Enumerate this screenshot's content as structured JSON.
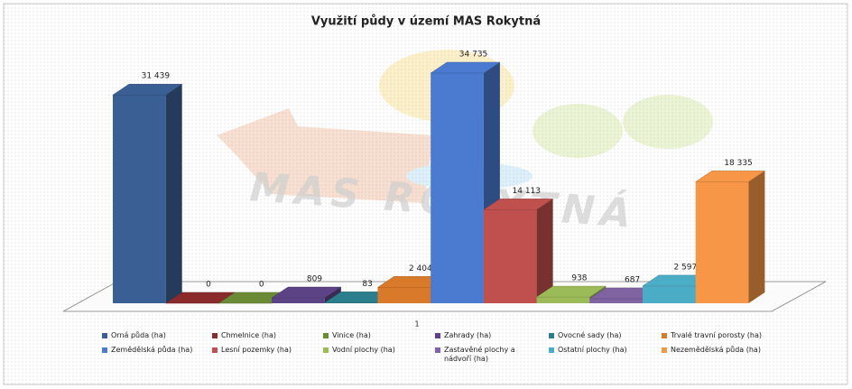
{
  "chart_data": {
    "type": "bar3d",
    "title": "Využití půdy v území MAS Rokytná",
    "watermark": "MAS ROKYTNÁ",
    "categories": [
      "1"
    ],
    "series": [
      {
        "name": "Orná půda (ha)",
        "color": "#3a5f95",
        "values": [
          31439
        ],
        "value_labels": [
          "31 439"
        ]
      },
      {
        "name": "Chmelnice (ha)",
        "color": "#8b2a2a",
        "values": [
          0
        ],
        "value_labels": [
          "0"
        ]
      },
      {
        "name": "Vinice (ha)",
        "color": "#6b8a35",
        "values": [
          0
        ],
        "value_labels": [
          "0"
        ]
      },
      {
        "name": "Zahrady (ha)",
        "color": "#5c4385",
        "values": [
          809
        ],
        "value_labels": [
          "809"
        ]
      },
      {
        "name": "Ovocné sady (ha)",
        "color": "#2b7f8d",
        "values": [
          83
        ],
        "value_labels": [
          "83"
        ]
      },
      {
        "name": "Trvalé travní porosty (ha)",
        "color": "#d97a2b",
        "values": [
          2404
        ],
        "value_labels": [
          "2 404"
        ]
      },
      {
        "name": "Zemědělská půda (ha)",
        "color": "#4a7bd0",
        "values": [
          34735
        ],
        "value_labels": [
          "34 735"
        ]
      },
      {
        "name": "Lesní pozemky (ha)",
        "color": "#c0504d",
        "values": [
          14113
        ],
        "value_labels": [
          "14 113"
        ]
      },
      {
        "name": "Vodní plochy (ha)",
        "color": "#9bbb59",
        "values": [
          938
        ],
        "value_labels": [
          "938"
        ]
      },
      {
        "name": "Zastavěné plochy a nádvoří (ha)",
        "color": "#8064a2",
        "values": [
          687
        ],
        "value_labels": [
          "687"
        ]
      },
      {
        "name": "Ostatní plochy (ha)",
        "color": "#4bacc6",
        "values": [
          2597
        ],
        "value_labels": [
          "2 597"
        ]
      },
      {
        "name": "Nezemědělská půda (ha)",
        "color": "#f79646",
        "values": [
          18335
        ],
        "value_labels": [
          "18 335"
        ]
      }
    ]
  }
}
